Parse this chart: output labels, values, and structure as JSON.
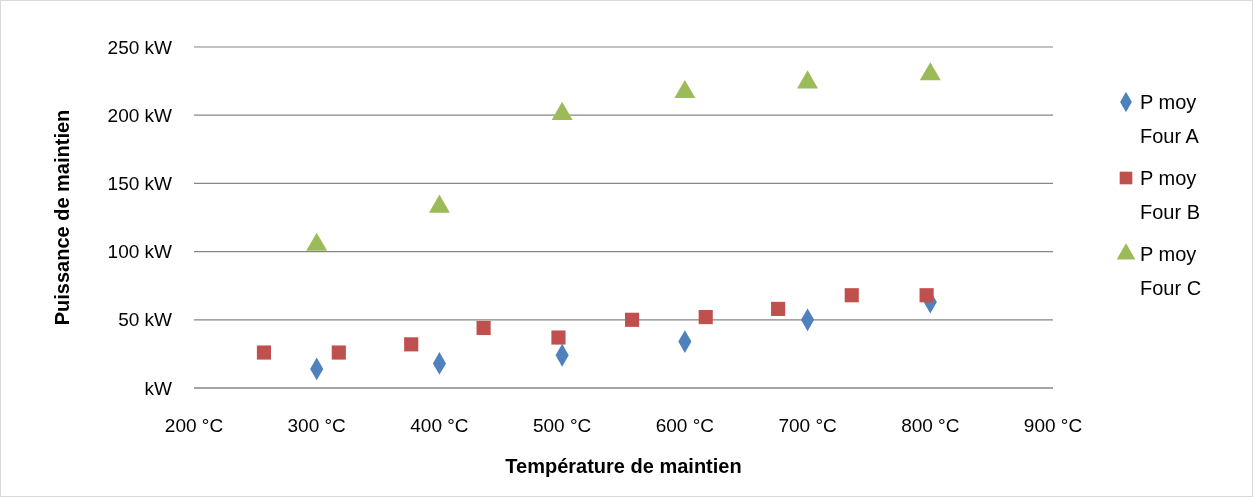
{
  "chart_data": {
    "type": "scatter",
    "xlabel": "Température de maintien",
    "ylabel": "Puissance de maintien",
    "xlim": [
      200,
      900
    ],
    "ylim": [
      0,
      250
    ],
    "xticks": [
      {
        "value": 200,
        "label": "200 °C"
      },
      {
        "value": 300,
        "label": "300 °C"
      },
      {
        "value": 400,
        "label": "400 °C"
      },
      {
        "value": 500,
        "label": "500 °C"
      },
      {
        "value": 600,
        "label": "600 °C"
      },
      {
        "value": 700,
        "label": "700 °C"
      },
      {
        "value": 800,
        "label": "800 °C"
      },
      {
        "value": 900,
        "label": "900 °C"
      }
    ],
    "yticks": [
      {
        "value": 0,
        "label": "kW"
      },
      {
        "value": 50,
        "label": "50 kW"
      },
      {
        "value": 100,
        "label": "100 kW"
      },
      {
        "value": 150,
        "label": "150 kW"
      },
      {
        "value": 200,
        "label": "200 kW"
      },
      {
        "value": 250,
        "label": "250 kW"
      }
    ],
    "grid": "y",
    "legend": "right",
    "series": [
      {
        "name": "P moy Four A",
        "color": "#4f81bd",
        "marker": "diamond",
        "x": [
          300,
          400,
          500,
          600,
          700,
          800
        ],
        "values": [
          14,
          18,
          24,
          34,
          50,
          63
        ]
      },
      {
        "name": "P moy Four B",
        "color": "#c0504d",
        "marker": "square",
        "x": [
          257,
          318,
          377,
          436,
          497,
          557,
          617,
          676,
          736,
          797
        ],
        "values": [
          26,
          26,
          32,
          44,
          37,
          50,
          52,
          58,
          68,
          68
        ]
      },
      {
        "name": "P moy Four C",
        "color": "#9bbb59",
        "marker": "triangle",
        "x": [
          300,
          400,
          500,
          600,
          700,
          800
        ],
        "values": [
          105,
          133,
          201,
          217,
          224,
          230
        ]
      }
    ]
  }
}
